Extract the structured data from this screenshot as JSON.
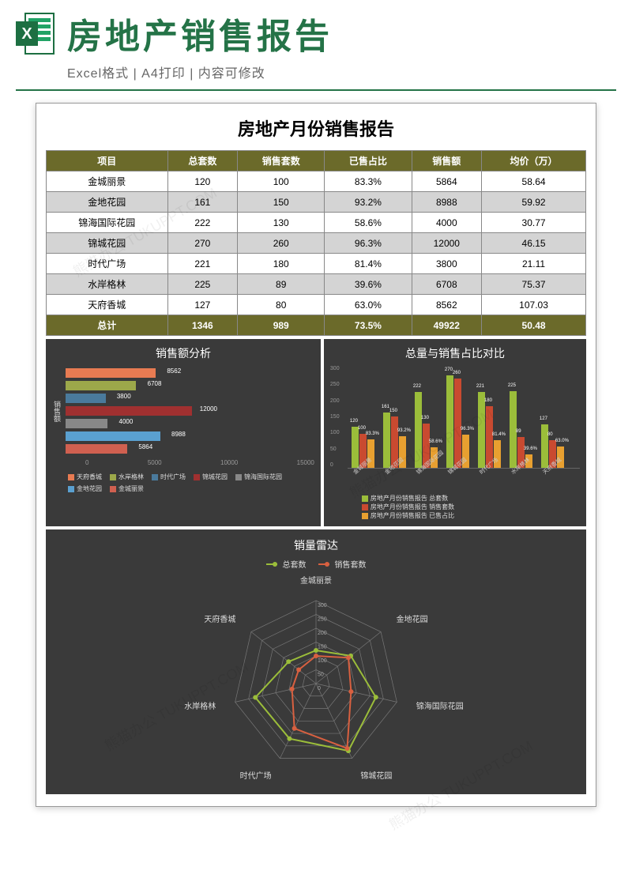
{
  "header": {
    "title": "房地产销售报告",
    "subtitle": "Excel格式 | A4打印 | 内容可修改",
    "excel_colors": {
      "dark": "#1d6f42",
      "light": "#21a366"
    }
  },
  "report": {
    "title": "房地产月份销售报告",
    "columns": [
      "项目",
      "总套数",
      "销售套数",
      "已售占比",
      "销售额",
      "均价（万）"
    ],
    "rows": [
      {
        "name": "金城丽景",
        "total": 120,
        "sold": 100,
        "pct": "83.3%",
        "amount": 5864,
        "avg": "58.64",
        "alt": false
      },
      {
        "name": "金地花园",
        "total": 161,
        "sold": 150,
        "pct": "93.2%",
        "amount": 8988,
        "avg": "59.92",
        "alt": true
      },
      {
        "name": "锦海国际花园",
        "total": 222,
        "sold": 130,
        "pct": "58.6%",
        "amount": 4000,
        "avg": "30.77",
        "alt": false
      },
      {
        "name": "锦城花园",
        "total": 270,
        "sold": 260,
        "pct": "96.3%",
        "amount": 12000,
        "avg": "46.15",
        "alt": true
      },
      {
        "name": "时代广场",
        "total": 221,
        "sold": 180,
        "pct": "81.4%",
        "amount": 3800,
        "avg": "21.11",
        "alt": false
      },
      {
        "name": "水岸格林",
        "total": 225,
        "sold": 89,
        "pct": "39.6%",
        "amount": 6708,
        "avg": "75.37",
        "alt": true
      },
      {
        "name": "天府香城",
        "total": 127,
        "sold": 80,
        "pct": "63.0%",
        "amount": 8562,
        "avg": "107.03",
        "alt": false
      }
    ],
    "total_row": [
      "总计",
      "1346",
      "989",
      "73.5%",
      "49922",
      "50.48"
    ]
  },
  "hbar": {
    "title": "销售额分析",
    "ylabel": "销售额",
    "max": 15000,
    "ticks": [
      "0",
      "5000",
      "10000",
      "15000"
    ],
    "bars": [
      {
        "label": "天府香城",
        "value": 8562,
        "color": "#e87b52"
      },
      {
        "label": "水岸格林",
        "value": 6708,
        "color": "#9ca84a"
      },
      {
        "label": "时代广场",
        "value": 3800,
        "color": "#4a7a9c"
      },
      {
        "label": "锦城花园",
        "value": 12000,
        "color": "#a03030"
      },
      {
        "label": "锦海国际花园",
        "value": 4000,
        "color": "#888888"
      },
      {
        "label": "金地花园",
        "value": 8988,
        "color": "#5aa0d0"
      },
      {
        "label": "金城丽景",
        "value": 5864,
        "color": "#d06050"
      }
    ],
    "legend": [
      {
        "label": "天府香城",
        "color": "#e87b52"
      },
      {
        "label": "水岸格林",
        "color": "#9ca84a"
      },
      {
        "label": "时代广场",
        "color": "#4a7a9c"
      },
      {
        "label": "锦城花园",
        "color": "#a03030"
      },
      {
        "label": "锦海国际花园",
        "color": "#888888"
      },
      {
        "label": "金地花园",
        "color": "#5aa0d0"
      },
      {
        "label": "金城丽景",
        "color": "#d06050"
      }
    ]
  },
  "vbar": {
    "title": "总量与销售占比对比",
    "ymax": 300,
    "yticks": [
      "300",
      "250",
      "200",
      "150",
      "100",
      "50",
      "0"
    ],
    "categories": [
      "金城丽景",
      "金地花园",
      "锦海国际花园",
      "锦城花园",
      "时代广场",
      "水岸格林",
      "天府香城"
    ],
    "series": {
      "total": {
        "color": "#9bbd3a",
        "values": [
          120,
          161,
          222,
          270,
          221,
          225,
          127
        ]
      },
      "sold": {
        "color": "#c94a30",
        "values": [
          100,
          150,
          130,
          260,
          180,
          89,
          80
        ]
      },
      "pct": {
        "color": "#e8a030",
        "values": [
          83,
          93,
          59,
          96,
          81,
          40,
          63
        ],
        "labels": [
          "83.3%",
          "93.2%",
          "58.6%",
          "96.3%",
          "81.4%",
          "39.6%",
          "63.0%"
        ]
      }
    },
    "legend": [
      {
        "label": "房地产月份销售报告 总套数",
        "color": "#9bbd3a"
      },
      {
        "label": "房地产月份销售报告 销售套数",
        "color": "#c94a30"
      },
      {
        "label": "房地产月份销售报告 已售占比",
        "color": "#e8a030"
      }
    ]
  },
  "radar": {
    "title": "销量雷达",
    "legend": [
      {
        "label": "总套数",
        "color": "#9bbd3a"
      },
      {
        "label": "销售套数",
        "color": "#d86040"
      }
    ],
    "axes": [
      "金城丽景",
      "金地花园",
      "锦海国际花园",
      "锦城花园",
      "时代广场",
      "水岸格林",
      "天府香城"
    ],
    "rings": [
      "300",
      "250",
      "200",
      "150",
      "100",
      "50",
      "0"
    ],
    "max": 300,
    "series": [
      {
        "color": "#9bbd3a",
        "values": [
          120,
          161,
          222,
          270,
          221,
          225,
          127
        ]
      },
      {
        "color": "#d86040",
        "values": [
          100,
          150,
          130,
          260,
          180,
          89,
          80
        ]
      }
    ],
    "grid_color": "#777"
  },
  "watermark": "熊猫办公 TUKUPPT.COM"
}
